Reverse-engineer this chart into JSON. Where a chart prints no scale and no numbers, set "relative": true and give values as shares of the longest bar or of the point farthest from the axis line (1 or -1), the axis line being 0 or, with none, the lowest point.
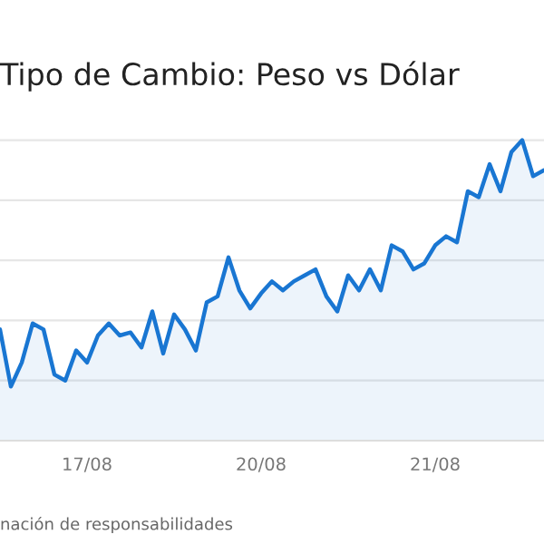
{
  "chart_data": {
    "type": "area",
    "title": "Tipo de Cambio: Peso vs Dólar",
    "relative": true,
    "grid": "y",
    "categories": [
      null,
      null,
      null,
      null,
      null,
      null,
      null,
      null,
      "17/08",
      null,
      null,
      null,
      null,
      null,
      null,
      null,
      null,
      null,
      null,
      null,
      null,
      null,
      null,
      null,
      "20/08",
      null,
      null,
      null,
      null,
      null,
      null,
      null,
      null,
      null,
      null,
      null,
      null,
      null,
      null,
      null,
      "21/08",
      null,
      null,
      null,
      null,
      null,
      null,
      null,
      null,
      null,
      null
    ],
    "series": [
      {
        "color": "#1976d2",
        "values": [
          0.37,
          0.18,
          0.26,
          0.39,
          0.37,
          0.22,
          0.2,
          0.3,
          0.26,
          0.35,
          0.39,
          0.35,
          0.36,
          0.31,
          0.43,
          0.29,
          0.42,
          0.37,
          0.3,
          0.46,
          0.48,
          0.61,
          0.5,
          0.44,
          0.49,
          0.53,
          0.5,
          0.53,
          0.55,
          0.57,
          0.48,
          0.43,
          0.55,
          0.5,
          0.57,
          0.5,
          0.65,
          0.63,
          0.57,
          0.59,
          0.65,
          0.68,
          0.66,
          0.83,
          0.81,
          0.92,
          0.83,
          0.96,
          1,
          0.88,
          0.9
        ]
      }
    ],
    "annotations": [
      "nación de responsabilidades"
    ]
  }
}
